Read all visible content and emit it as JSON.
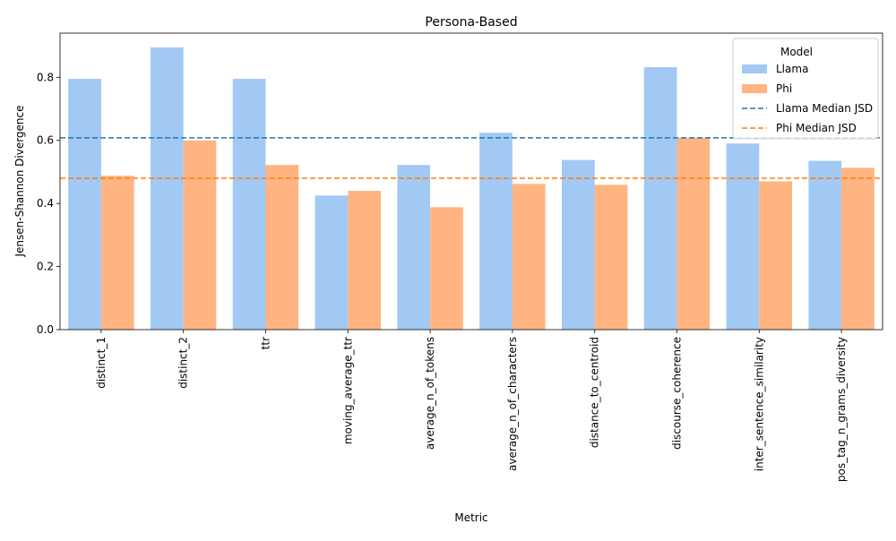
{
  "chart_data": {
    "type": "bar",
    "title": "Persona-Based",
    "xlabel": "Metric",
    "ylabel": "Jensen-Shannon Divergence",
    "ylim": [
      0,
      0.94
    ],
    "yticks": [
      "0.0",
      "0.2",
      "0.4",
      "0.6",
      "0.8"
    ],
    "categories": [
      "distinct_1",
      "distinct_2",
      "ttr",
      "moving_average_ttr",
      "average_n_of_tokens",
      "average_n_of_characters",
      "distance_to_centroid",
      "discourse_coherence",
      "inter_sentence_similarity",
      "pos_tag_n_grams_diversity"
    ],
    "series": [
      {
        "name": "Llama",
        "color": "#a1c9f4",
        "values": [
          0.795,
          0.895,
          0.795,
          0.425,
          0.522,
          0.624,
          0.538,
          0.832,
          0.59,
          0.535
        ]
      },
      {
        "name": "Phi",
        "color": "#ffb482",
        "values": [
          0.488,
          0.6,
          0.522,
          0.44,
          0.388,
          0.462,
          0.459,
          0.608,
          0.47,
          0.513
        ]
      }
    ],
    "reference_lines": [
      {
        "name": "Llama Median JSD",
        "value": 0.608,
        "color": "#1f77b4",
        "style": "dashed"
      },
      {
        "name": "Phi Median JSD",
        "value": 0.48,
        "color": "#ff7f0e",
        "style": "dashed"
      }
    ],
    "legend": {
      "title": "Model",
      "placement": "top-right"
    },
    "grid": false
  }
}
